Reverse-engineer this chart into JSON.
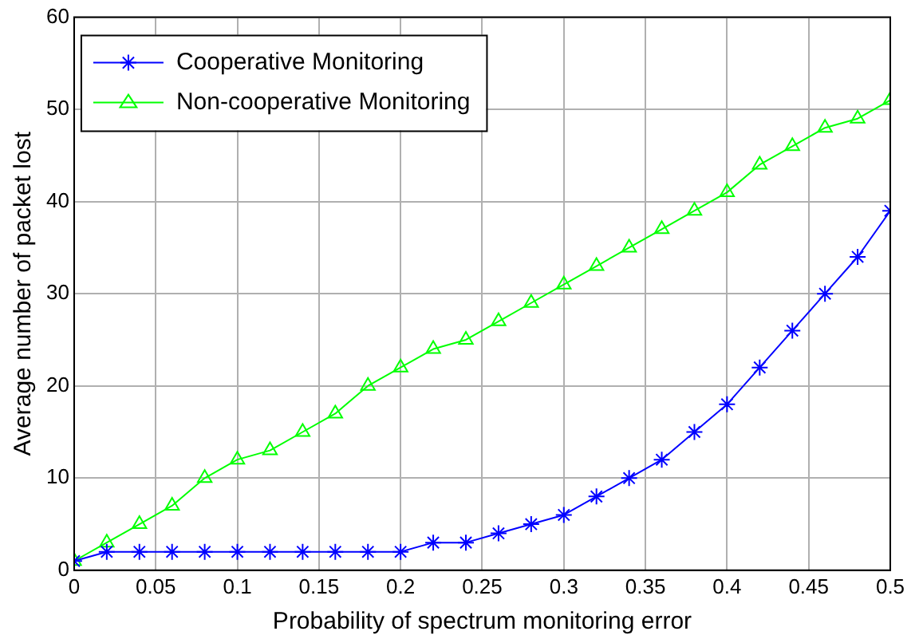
{
  "chart_data": {
    "type": "line",
    "xlabel": "Probability of spectrum monitoring error",
    "ylabel": "Average number of packet lost",
    "x": [
      0,
      0.02,
      0.04,
      0.06,
      0.08,
      0.1,
      0.12,
      0.14,
      0.16,
      0.18,
      0.2,
      0.22,
      0.24,
      0.26,
      0.28,
      0.3,
      0.32,
      0.34,
      0.36,
      0.38,
      0.4,
      0.42,
      0.44,
      0.46,
      0.48,
      0.5
    ],
    "series": [
      {
        "name": "Cooperative Monitoring",
        "color": "#0000ff",
        "marker": "cross",
        "values": [
          1,
          2,
          2,
          2,
          2,
          2,
          2,
          2,
          2,
          2,
          2,
          3,
          3,
          4,
          5,
          6,
          8,
          10,
          12,
          15,
          18,
          22,
          26,
          30,
          34,
          39
        ]
      },
      {
        "name": "Non-cooperative Monitoring",
        "color": "#00ff00",
        "marker": "triangle",
        "values": [
          1,
          3,
          5,
          7,
          10,
          12,
          13,
          15,
          17,
          20,
          22,
          24,
          25,
          27,
          29,
          31,
          33,
          35,
          37,
          39,
          41,
          44,
          46,
          48,
          49,
          51
        ]
      }
    ],
    "xlim": [
      0,
      0.5
    ],
    "xticks": [
      0,
      0.05,
      0.1,
      0.15,
      0.2,
      0.25,
      0.3,
      0.35,
      0.4,
      0.45,
      0.5
    ],
    "ylim": [
      0,
      60
    ],
    "yticks": [
      0,
      10,
      20,
      30,
      40,
      50,
      60
    ],
    "grid": true,
    "legend": "top left",
    "line_style": "solid"
  }
}
